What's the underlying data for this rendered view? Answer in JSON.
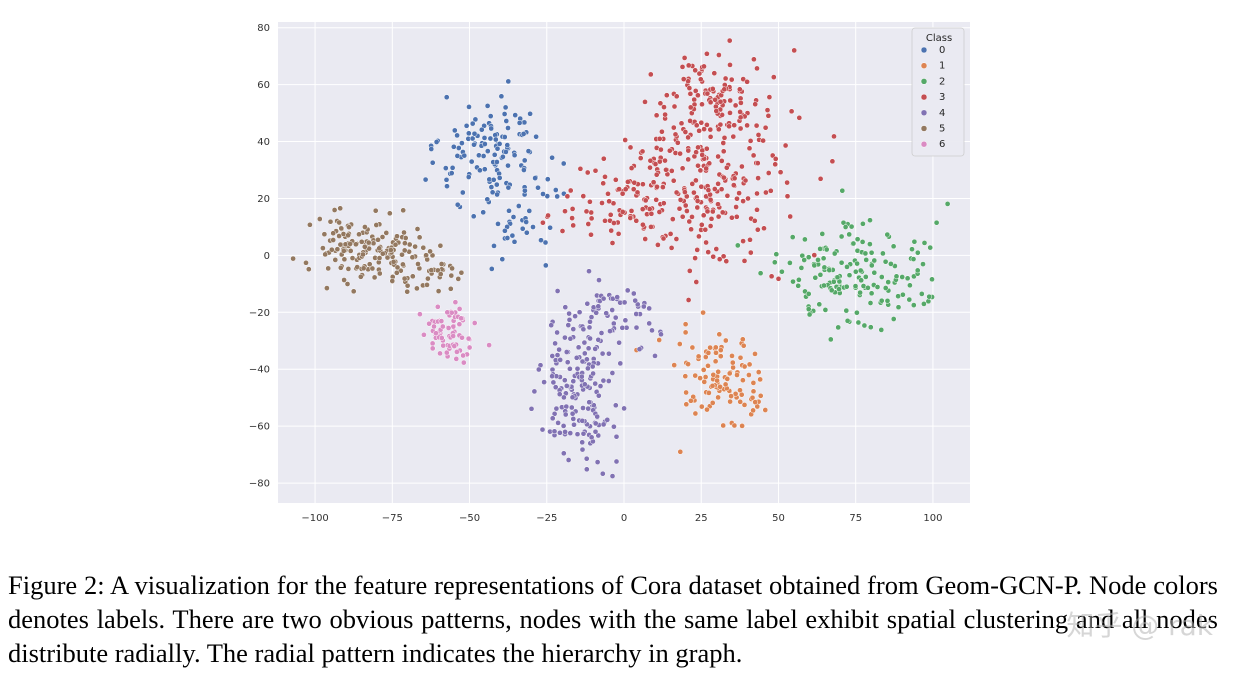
{
  "chart_data": {
    "type": "scatter",
    "title": "",
    "xlabel": "",
    "ylabel": "",
    "xlim": [
      -112,
      112
    ],
    "ylim": [
      -87,
      82
    ],
    "xticks": [
      -100,
      -75,
      -50,
      -25,
      0,
      25,
      50,
      75,
      100
    ],
    "yticks": [
      -80,
      -60,
      -40,
      -20,
      0,
      20,
      40,
      60,
      80
    ],
    "xtick_labels": [
      "−100",
      "−75",
      "−50",
      "−25",
      "0",
      "25",
      "50",
      "75",
      "100"
    ],
    "ytick_labels": [
      "−80",
      "−60",
      "−40",
      "−20",
      "0",
      "20",
      "40",
      "60",
      "80"
    ],
    "grid": true,
    "background": "#eaeaf2",
    "legend": {
      "title": "Class",
      "placement": "top-right",
      "entries": [
        "0",
        "1",
        "2",
        "3",
        "4",
        "5",
        "6"
      ]
    },
    "series": [
      {
        "name": "0",
        "color": "#4c72b0",
        "count": 165,
        "clusters": [
          {
            "cx": -43,
            "cy": 34,
            "sx": 9,
            "sy": 11,
            "w": 0.8
          },
          {
            "cx": -32,
            "cy": 12,
            "sx": 6,
            "sy": 8,
            "w": 0.2
          }
        ]
      },
      {
        "name": "1",
        "color": "#dd8452",
        "count": 110,
        "clusters": [
          {
            "cx": 32,
            "cy": -45,
            "sx": 7,
            "sy": 8,
            "w": 1.0
          }
        ]
      },
      {
        "name": "2",
        "color": "#55a868",
        "count": 170,
        "clusters": [
          {
            "cx": 75,
            "cy": -7,
            "sx": 12,
            "sy": 9,
            "w": 1.0
          }
        ]
      },
      {
        "name": "3",
        "color": "#c44e52",
        "count": 420,
        "clusters": [
          {
            "cx": 24,
            "cy": 28,
            "sx": 14,
            "sy": 15,
            "w": 0.6
          },
          {
            "cx": 30,
            "cy": 55,
            "sx": 8,
            "sy": 7,
            "w": 0.22
          },
          {
            "cx": 0,
            "cy": 18,
            "sx": 10,
            "sy": 7,
            "w": 0.18
          }
        ]
      },
      {
        "name": "4",
        "color": "#8172b3",
        "count": 230,
        "clusters": [
          {
            "cx": -13,
            "cy": -45,
            "sx": 6,
            "sy": 14,
            "w": 0.75
          },
          {
            "cx": -5,
            "cy": -20,
            "sx": 7,
            "sy": 6,
            "w": 0.25
          }
        ]
      },
      {
        "name": "5",
        "color": "#937860",
        "count": 190,
        "clusters": [
          {
            "cx": -85,
            "cy": 3,
            "sx": 9,
            "sy": 6,
            "w": 0.75
          },
          {
            "cx": -65,
            "cy": -4,
            "sx": 6,
            "sy": 4,
            "w": 0.25
          }
        ]
      },
      {
        "name": "6",
        "color": "#da8bc3",
        "count": 75,
        "clusters": [
          {
            "cx": -57,
            "cy": -27,
            "sx": 4,
            "sy": 5,
            "w": 1.0
          }
        ]
      }
    ]
  },
  "caption": {
    "text": "Figure 2: A visualization for the feature representations of Cora dataset obtained from Geom-GCN-P. Node colors denotes labels. There are two obvious patterns, nodes with the same label exhibit spatial clustering and all nodes distribute radially. The radial pattern indicates the hierarchy in graph."
  },
  "watermark": {
    "text": "知乎 @ rak"
  }
}
